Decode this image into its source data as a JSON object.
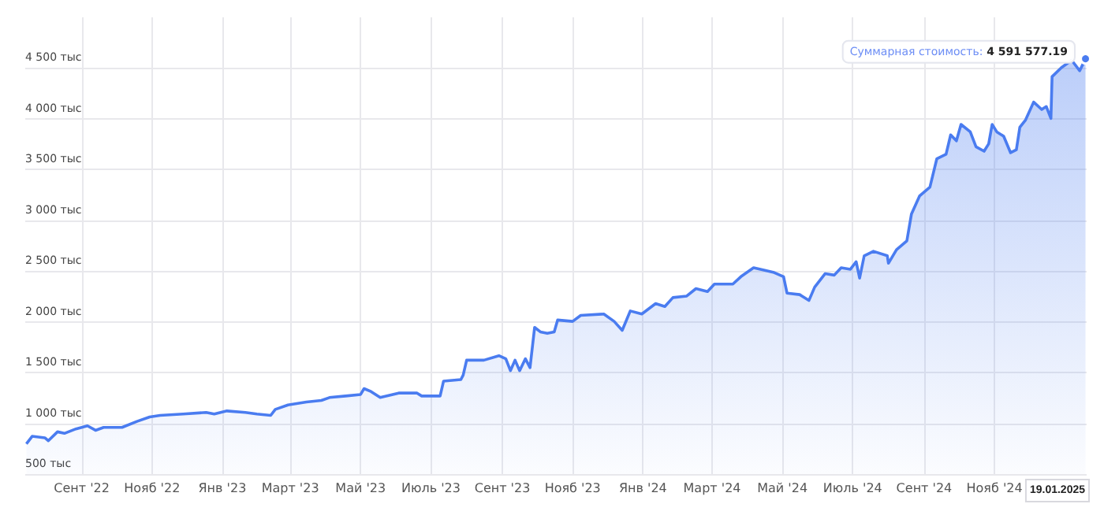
{
  "chart_data": {
    "type": "area",
    "color": "#4a7cf0",
    "x": [
      "2022-07-15",
      "2022-07-20",
      "2022-07-31",
      "2022-08-03",
      "2022-08-11",
      "2022-08-17",
      "2022-08-27",
      "2022-09-06",
      "2022-09-13",
      "2022-09-20",
      "2022-10-06",
      "2022-10-19",
      "2022-10-30",
      "2022-11-08",
      "2022-11-28",
      "2022-12-18",
      "2022-12-25",
      "2023-01-05",
      "2023-01-21",
      "2023-01-31",
      "2023-02-12",
      "2023-02-16",
      "2023-02-27",
      "2023-03-15",
      "2023-03-28",
      "2023-04-04",
      "2023-04-18",
      "2023-05-01",
      "2023-05-04",
      "2023-05-10",
      "2023-05-18",
      "2023-06-03",
      "2023-06-19",
      "2023-06-23",
      "2023-07-09",
      "2023-07-12",
      "2023-07-27",
      "2023-07-29",
      "2023-08-01",
      "2023-08-16",
      "2023-08-29",
      "2023-09-04",
      "2023-09-08",
      "2023-09-12",
      "2023-09-16",
      "2023-09-21",
      "2023-09-25",
      "2023-09-29",
      "2023-10-04",
      "2023-10-10",
      "2023-10-16",
      "2023-10-19",
      "2023-11-01",
      "2023-11-08",
      "2023-11-28",
      "2023-12-07",
      "2023-12-14",
      "2023-12-21",
      "2023-12-31",
      "2024-01-12",
      "2024-01-20",
      "2024-01-27",
      "2024-02-08",
      "2024-02-16",
      "2024-02-26",
      "2024-03-03",
      "2024-03-19",
      "2024-03-26",
      "2024-04-06",
      "2024-04-12",
      "2024-04-23",
      "2024-05-02",
      "2024-05-05",
      "2024-05-16",
      "2024-05-24",
      "2024-05-29",
      "2024-06-07",
      "2024-06-15",
      "2024-06-21",
      "2024-06-29",
      "2024-07-04",
      "2024-07-07",
      "2024-07-11",
      "2024-07-19",
      "2024-07-31",
      "2024-08-01",
      "2024-08-08",
      "2024-08-17",
      "2024-08-21",
      "2024-08-28",
      "2024-09-06",
      "2024-09-12",
      "2024-09-20",
      "2024-09-24",
      "2024-09-29",
      "2024-10-03",
      "2024-10-11",
      "2024-10-16",
      "2024-10-23",
      "2024-10-27",
      "2024-10-30",
      "2024-11-03",
      "2024-11-09",
      "2024-11-15",
      "2024-11-20",
      "2024-11-23",
      "2024-11-28",
      "2024-12-05",
      "2024-12-12",
      "2024-12-16",
      "2024-12-20",
      "2024-12-21",
      "2024-12-29",
      "2025-01-07",
      "2025-01-14",
      "2025-01-19"
    ],
    "values": [
      798,
      872,
      857,
      828,
      916,
      901,
      945,
      975,
      931,
      960,
      960,
      1019,
      1063,
      1078,
      1092,
      1107,
      1092,
      1122,
      1107,
      1092,
      1078,
      1137,
      1181,
      1210,
      1225,
      1254,
      1269,
      1284,
      1342,
      1313,
      1254,
      1298,
      1298,
      1269,
      1269,
      1416,
      1431,
      1475,
      1622,
      1622,
      1666,
      1636,
      1519,
      1622,
      1519,
      1636,
      1548,
      1945,
      1901,
      1886,
      1901,
      2018,
      2004,
      2063,
      2077,
      2004,
      1916,
      2107,
      2077,
      2180,
      2151,
      2239,
      2254,
      2327,
      2298,
      2372,
      2372,
      2445,
      2533,
      2518,
      2489,
      2445,
      2283,
      2268,
      2210,
      2342,
      2474,
      2460,
      2533,
      2518,
      2592,
      2430,
      2651,
      2695,
      2651,
      2577,
      2710,
      2798,
      3063,
      3239,
      3327,
      3607,
      3651,
      3842,
      3783,
      3945,
      3872,
      3725,
      3681,
      3754,
      3945,
      3872,
      3828,
      3666,
      3695,
      3916,
      3989,
      4165,
      4092,
      4121,
      4004,
      4415,
      4503,
      4577,
      4474,
      4591.57719
    ],
    "xlim": [
      "2022-07-14",
      "2025-01-20"
    ],
    "xticks": [
      {
        "value": "2022-09-01",
        "label": "Сент '22"
      },
      {
        "value": "2022-11-01",
        "label": "Нояб '22"
      },
      {
        "value": "2023-01-01",
        "label": "Янв '23"
      },
      {
        "value": "2023-03-01",
        "label": "Март '23"
      },
      {
        "value": "2023-05-01",
        "label": "Май '23"
      },
      {
        "value": "2023-07-01",
        "label": "Июль '23"
      },
      {
        "value": "2023-09-01",
        "label": "Сент '23"
      },
      {
        "value": "2023-11-01",
        "label": "Нояб '23"
      },
      {
        "value": "2024-01-01",
        "label": "Янв '24"
      },
      {
        "value": "2024-03-01",
        "label": "Март '24"
      },
      {
        "value": "2024-05-01",
        "label": "Май '24"
      },
      {
        "value": "2024-07-01",
        "label": "Июль '24"
      },
      {
        "value": "2024-09-01",
        "label": "Сент '24"
      },
      {
        "value": "2024-11-01",
        "label": "Нояб '24"
      }
    ],
    "ylim": [
      500,
      5000
    ],
    "yticks": [
      {
        "value": 500,
        "label": "500 тыс"
      },
      {
        "value": 1000,
        "label": "1 000 тыс"
      },
      {
        "value": 1500,
        "label": "1 500 тыс"
      },
      {
        "value": 2000,
        "label": "2 000 тыс"
      },
      {
        "value": 2500,
        "label": "2 500 тыс"
      },
      {
        "value": 3000,
        "label": "3 000 тыс"
      },
      {
        "value": 3500,
        "label": "3 500 тыс"
      },
      {
        "value": 4000,
        "label": "4 000 тыс"
      },
      {
        "value": 4500,
        "label": "4 500 тыс"
      }
    ],
    "grid": true,
    "annotations": [
      {
        "text": "Суммарная стоимость: 4 591 577.19",
        "x": "2025-01-19",
        "y": 4591.57719
      },
      "19.01.2025"
    ]
  }
}
